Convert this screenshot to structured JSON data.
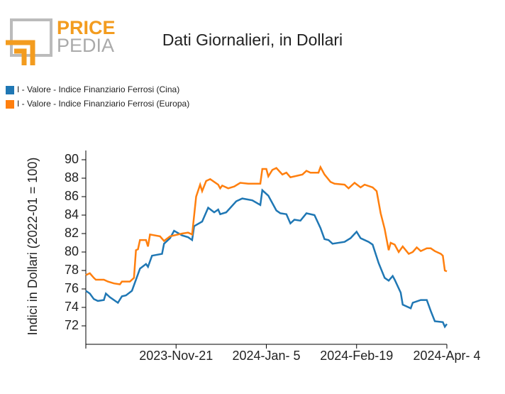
{
  "logo": {
    "top": "PRICE",
    "bottom": "PEDIA"
  },
  "chart_data": {
    "type": "line",
    "title": "Dati Giornalieri, in Dollari",
    "y_label": "Indici in Dollari (2022-01 = 100)",
    "xlim": [
      "2023-10-07",
      "2024-04-04"
    ],
    "xticks": [
      {
        "value": "2023-11-21",
        "label": "2023-Nov-21"
      },
      {
        "value": "2024-01-05",
        "label": "2024-Jan- 5"
      },
      {
        "value": "2024-02-19",
        "label": "2024-Feb-19"
      },
      {
        "value": "2024-04-04",
        "label": "2024-Apr- 4"
      }
    ],
    "ylim": [
      70,
      91
    ],
    "yticks": [
      72,
      74,
      76,
      78,
      80,
      82,
      84,
      86,
      88,
      90
    ],
    "series": [
      {
        "name": "I - Valore - Indice Finanziario Ferrosi (Cina)",
        "color": "#1f77b4",
        "x": [
          "2023-10-07",
          "2023-10-09",
          "2023-10-11",
          "2023-10-13",
          "2023-10-16",
          "2023-10-17",
          "2023-10-19",
          "2023-10-23",
          "2023-10-25",
          "2023-10-27",
          "2023-10-30",
          "2023-11-03",
          "2023-11-06",
          "2023-11-07",
          "2023-11-09",
          "2023-11-14",
          "2023-11-15",
          "2023-11-18",
          "2023-11-20",
          "2023-11-24",
          "2023-11-27",
          "2023-11-29",
          "2023-11-30",
          "2023-12-04",
          "2023-12-07",
          "2023-12-10",
          "2023-12-12",
          "2023-12-13",
          "2023-12-16",
          "2023-12-21",
          "2023-12-24",
          "2023-12-29",
          "2024-01-02",
          "2024-01-03",
          "2024-01-06",
          "2024-01-10",
          "2024-01-12",
          "2024-01-15",
          "2024-01-17",
          "2024-01-19",
          "2024-01-22",
          "2024-01-25",
          "2024-01-29",
          "2024-02-01",
          "2024-02-03",
          "2024-02-05",
          "2024-02-07",
          "2024-02-13",
          "2024-02-16",
          "2024-02-19",
          "2024-02-21",
          "2024-02-25",
          "2024-02-27",
          "2024-03-01",
          "2024-03-04",
          "2024-03-06",
          "2024-03-08",
          "2024-03-09",
          "2024-03-12",
          "2024-03-13",
          "2024-03-17",
          "2024-03-18",
          "2024-03-22",
          "2024-03-25",
          "2024-03-27",
          "2024-03-29",
          "2024-04-02",
          "2024-04-03",
          "2024-04-04"
        ],
        "values": [
          75.8,
          75.5,
          74.9,
          74.7,
          74.8,
          75.5,
          75.1,
          74.5,
          75.2,
          75.3,
          75.8,
          78.2,
          78.7,
          78.4,
          79.6,
          79.8,
          80.9,
          81.5,
          82.3,
          81.8,
          81.6,
          81.3,
          82.8,
          83.3,
          84.8,
          84.3,
          84.6,
          84.1,
          84.3,
          85.5,
          85.8,
          85.6,
          85.1,
          86.7,
          86.1,
          84.5,
          84.2,
          84.1,
          83.1,
          83.5,
          83.4,
          84.2,
          84.0,
          82.6,
          81.4,
          81.3,
          80.9,
          81.1,
          81.5,
          82.2,
          81.5,
          81.1,
          80.8,
          78.8,
          77.2,
          76.9,
          77.4,
          77.0,
          75.6,
          74.3,
          73.9,
          74.5,
          74.8,
          74.8,
          73.6,
          72.5,
          72.4,
          71.9,
          72.2
        ]
      },
      {
        "name": "I - Valore - Indice Finanziario Ferrosi (Europa)",
        "color": "#ff7f0e",
        "x": [
          "2023-10-07",
          "2023-10-09",
          "2023-10-11",
          "2023-10-12",
          "2023-10-16",
          "2023-10-18",
          "2023-10-21",
          "2023-10-24",
          "2023-10-25",
          "2023-10-29",
          "2023-10-31",
          "2023-11-01",
          "2023-11-02",
          "2023-11-03",
          "2023-11-06",
          "2023-11-07",
          "2023-11-08",
          "2023-11-13",
          "2023-11-15",
          "2023-11-18",
          "2023-11-24",
          "2023-11-27",
          "2023-11-29",
          "2023-12-01",
          "2023-12-03",
          "2023-12-04",
          "2023-12-06",
          "2023-12-08",
          "2023-12-12",
          "2023-12-13",
          "2023-12-14",
          "2023-12-17",
          "2023-12-20",
          "2023-12-23",
          "2023-12-27",
          "2024-01-02",
          "2024-01-03",
          "2024-01-05",
          "2024-01-06",
          "2024-01-08",
          "2024-01-10",
          "2024-01-13",
          "2024-01-15",
          "2024-01-17",
          "2024-01-23",
          "2024-01-25",
          "2024-01-27",
          "2024-01-31",
          "2024-02-01",
          "2024-02-03",
          "2024-02-06",
          "2024-02-08",
          "2024-02-13",
          "2024-02-15",
          "2024-02-18",
          "2024-02-21",
          "2024-02-23",
          "2024-02-27",
          "2024-02-29",
          "2024-03-02",
          "2024-03-04",
          "2024-03-06",
          "2024-03-07",
          "2024-03-09",
          "2024-03-11",
          "2024-03-13",
          "2024-03-16",
          "2024-03-18",
          "2024-03-20",
          "2024-03-22",
          "2024-03-25",
          "2024-03-27",
          "2024-03-29",
          "2024-04-01",
          "2024-04-02",
          "2024-04-03",
          "2024-04-04"
        ],
        "values": [
          77.5,
          77.7,
          77.2,
          77.0,
          77.0,
          76.8,
          76.6,
          76.5,
          76.8,
          76.8,
          77.2,
          80.2,
          80.3,
          81.3,
          81.3,
          80.6,
          81.9,
          81.7,
          81.2,
          81.7,
          82.0,
          82.1,
          81.9,
          86.0,
          87.3,
          86.6,
          87.7,
          87.9,
          87.3,
          86.9,
          87.2,
          86.9,
          87.1,
          87.5,
          87.4,
          87.4,
          89.0,
          89.0,
          88.2,
          88.9,
          89.1,
          88.4,
          88.6,
          88.1,
          88.4,
          88.8,
          88.6,
          88.6,
          89.2,
          88.4,
          87.6,
          87.4,
          87.3,
          86.9,
          87.5,
          87.0,
          87.3,
          87.0,
          86.6,
          84.2,
          82.5,
          80.2,
          81.0,
          80.8,
          80.0,
          80.6,
          79.8,
          80.0,
          80.5,
          80.1,
          80.4,
          80.4,
          80.1,
          79.8,
          79.6,
          78.0,
          77.9
        ]
      }
    ]
  }
}
